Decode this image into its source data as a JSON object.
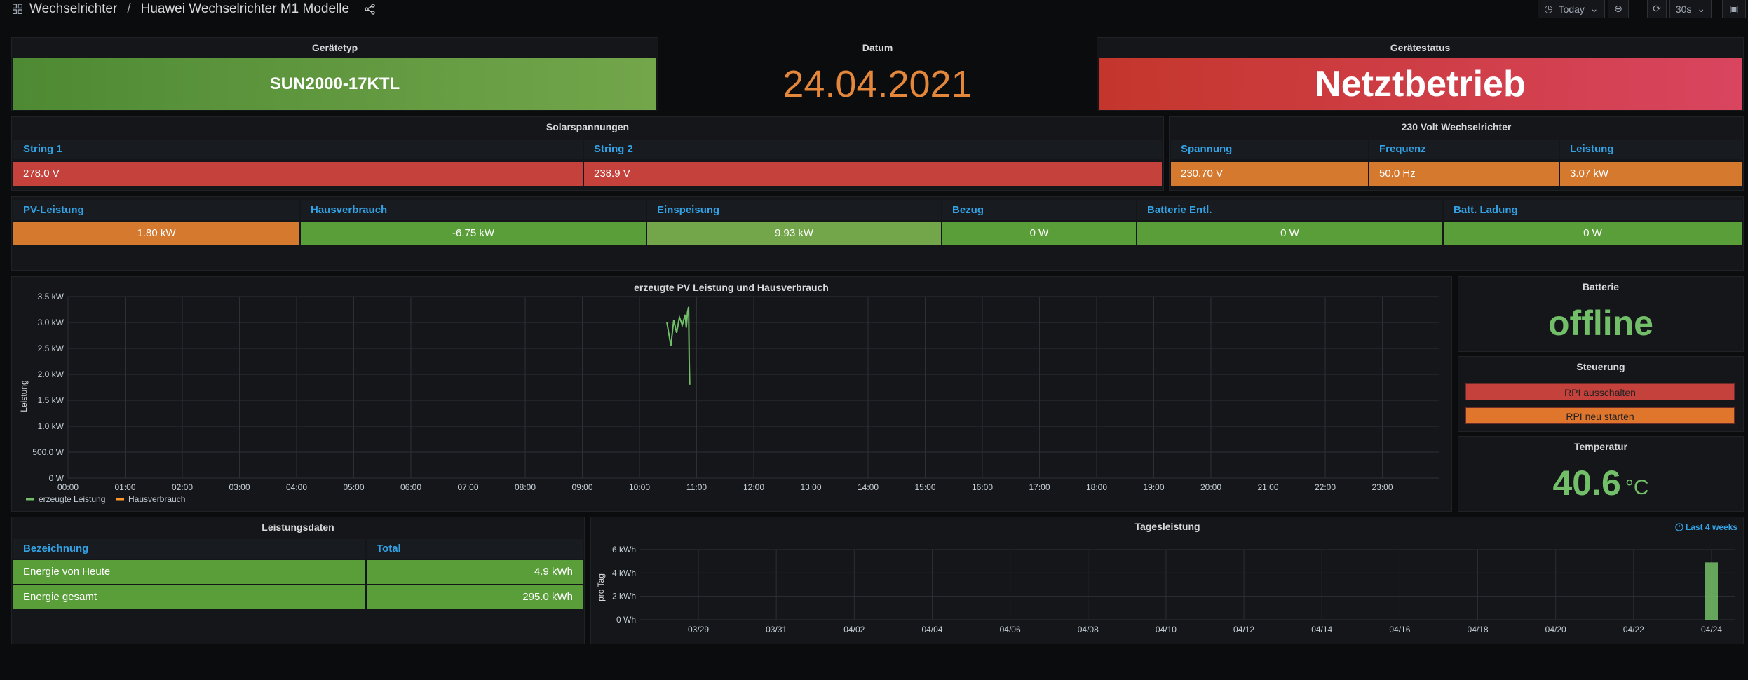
{
  "header": {
    "folder": "Wechselrichter",
    "separator": "/",
    "dashboard": "Huawei Wechselrichter M1 Modelle",
    "time_range": "Today",
    "refresh": "30s"
  },
  "geraetetyp": {
    "title": "Gerätetyp",
    "value": "SUN2000-17KTL"
  },
  "datum": {
    "title": "Datum",
    "value": "24.04.2021"
  },
  "geraetestatus": {
    "title": "Gerätestatus",
    "value": "Netztbetrieb"
  },
  "solarspannungen": {
    "title": "Solarspannungen",
    "headers": [
      "String 1",
      "String 2"
    ],
    "values": [
      "278.0 V",
      "238.9 V"
    ]
  },
  "wechselrichter": {
    "title": "230 Volt Wechselrichter",
    "headers": [
      "Spannung",
      "Frequenz",
      "Leistung"
    ],
    "values": [
      "230.70 V",
      "50.0 Hz",
      "3.07 kW"
    ]
  },
  "leistung": {
    "headers": [
      "PV-Leistung",
      "Hausverbrauch",
      "Einspeisung",
      "Bezug",
      "Batterie Entl.",
      "Batt. Ladung"
    ],
    "values": [
      "1.80 kW",
      "-6.75 kW",
      "9.93 kW",
      "0 W",
      "0 W",
      "0 W"
    ]
  },
  "batterie": {
    "title": "Batterie",
    "value": "offline"
  },
  "steuerung": {
    "title": "Steuerung",
    "btn_off": "RPI ausschalten",
    "btn_restart": "RPI neu starten"
  },
  "temperatur": {
    "title": "Temperatur",
    "value": "40.6",
    "unit": "°C"
  },
  "leistungsdaten": {
    "title": "Leistungsdaten",
    "headers": [
      "Bezeichnung",
      "Total"
    ],
    "rows": [
      {
        "name": "Energie von Heute",
        "total": "4.9 kWh"
      },
      {
        "name": "Energie gesamt",
        "total": "295.0 kWh"
      }
    ]
  },
  "colors": {
    "green": "#73bf69",
    "orange": "#ff9830",
    "red": "#c4413c",
    "blue": "#33a2e5"
  },
  "chart_data": [
    {
      "type": "line",
      "title": "erzeugte PV Leistung und Hausverbrauch",
      "ylabel": "Leistung",
      "xlabel": "",
      "xlim": [
        0,
        24
      ],
      "ylim": [
        0,
        3.5
      ],
      "x_ticks": [
        "00:00",
        "01:00",
        "02:00",
        "03:00",
        "04:00",
        "05:00",
        "06:00",
        "07:00",
        "08:00",
        "09:00",
        "10:00",
        "11:00",
        "12:00",
        "13:00",
        "14:00",
        "15:00",
        "16:00",
        "17:00",
        "18:00",
        "19:00",
        "20:00",
        "21:00",
        "22:00",
        "23:00"
      ],
      "y_ticks": [
        "0 W",
        "500.0 W",
        "1.0 kW",
        "1.5 kW",
        "2.0 kW",
        "2.5 kW",
        "3.0 kW",
        "3.5 kW"
      ],
      "legend": "bottom-left",
      "grid": true,
      "series": [
        {
          "name": "erzeugte Leistung",
          "color": "#73bf69",
          "x": [
            10.48,
            10.55,
            10.6,
            10.65,
            10.7,
            10.75,
            10.8,
            10.82,
            10.84,
            10.86,
            10.87,
            10.88
          ],
          "y": [
            3.0,
            2.55,
            3.05,
            2.8,
            3.1,
            2.95,
            3.15,
            2.9,
            3.2,
            3.3,
            2.3,
            1.8
          ]
        },
        {
          "name": "Hausverbrauch",
          "color": "#ff9830",
          "x": [],
          "y": []
        }
      ]
    },
    {
      "type": "bar",
      "title": "Tagesleistung",
      "ylabel": "pro Tag",
      "xlabel": "",
      "range_label": "Last 4 weeks",
      "ylim": [
        0,
        6
      ],
      "y_ticks": [
        "0 Wh",
        "2 kWh",
        "4 kWh",
        "6 kWh"
      ],
      "x_ticks": [
        "03/29",
        "03/31",
        "04/02",
        "04/04",
        "04/06",
        "04/08",
        "04/10",
        "04/12",
        "04/14",
        "04/16",
        "04/18",
        "04/20",
        "04/22",
        "04/24"
      ],
      "grid": true,
      "series": [
        {
          "color": "#73bf69",
          "categories": [
            "04/24"
          ],
          "values": [
            4.9
          ]
        }
      ]
    }
  ]
}
